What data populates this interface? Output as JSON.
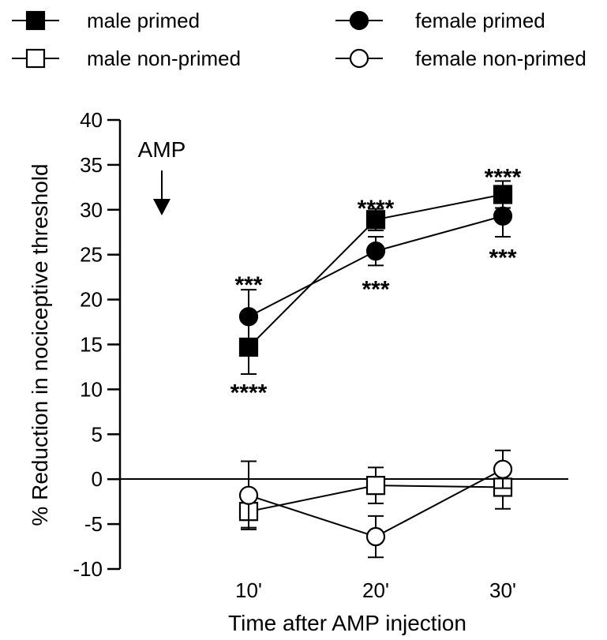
{
  "chart_data": {
    "type": "line",
    "title": "",
    "xlabel": "Time after AMP injection",
    "ylabel": "% Reduction in nociceptive threshold",
    "ylim": [
      -10,
      40
    ],
    "yticks": [
      -10,
      -5,
      0,
      5,
      10,
      15,
      20,
      25,
      30,
      35,
      40
    ],
    "categories": [
      "10'",
      "20'",
      "30'"
    ],
    "legend_position": "top",
    "series": [
      {
        "name": "male primed",
        "marker": "filled-square",
        "values": [
          14.7,
          28.9,
          31.7
        ],
        "error": [
          3.0,
          1.2,
          1.5
        ]
      },
      {
        "name": "female primed",
        "marker": "filled-circle",
        "values": [
          18.1,
          25.4,
          29.3
        ],
        "error": [
          3.0,
          1.6,
          2.3
        ]
      },
      {
        "name": "male non-primed",
        "marker": "open-square",
        "values": [
          -3.6,
          -0.7,
          -0.9
        ],
        "error": [
          1.8,
          2.0,
          2.4
        ]
      },
      {
        "name": "female non-primed",
        "marker": "open-circle",
        "values": [
          -1.8,
          -6.4,
          1.1
        ],
        "error": [
          3.8,
          2.3,
          2.1
        ]
      }
    ],
    "annotations": [
      {
        "text": "****",
        "category": "10'",
        "y": 10.0
      },
      {
        "text": "***",
        "category": "10'",
        "y": 22.0
      },
      {
        "text": "****",
        "category": "20'",
        "y": 30.5
      },
      {
        "text": "***",
        "category": "20'",
        "y": 21.5
      },
      {
        "text": "****",
        "category": "30'",
        "y": 34.0
      },
      {
        "text": "***",
        "category": "30'",
        "y": 25.0
      }
    ],
    "arrow": {
      "text": "AMP"
    }
  }
}
